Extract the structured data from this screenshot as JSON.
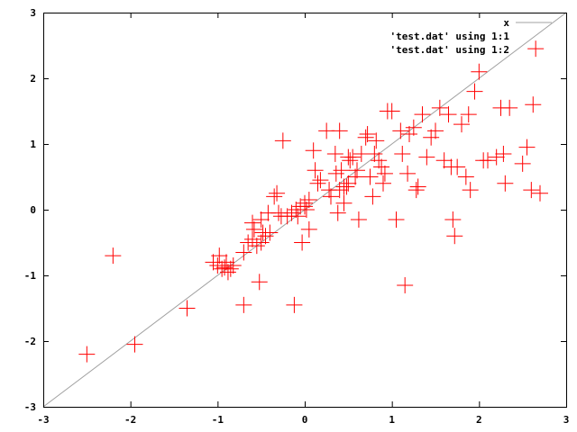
{
  "chart_data": {
    "type": "scatter",
    "xlim": [
      -3,
      3
    ],
    "ylim": [
      -3,
      3
    ],
    "x_ticks": [
      "-3",
      "-2",
      "-1",
      "0",
      "1",
      "2",
      "3"
    ],
    "y_ticks": [
      "-3",
      "-2",
      "-1",
      "0",
      "1",
      "2",
      "3"
    ],
    "grid": false,
    "legend_position": "top-right",
    "series": [
      {
        "name": "x",
        "type": "line",
        "color": "#a0a0a0",
        "function": "y = x"
      },
      {
        "name": "'test.dat' using 1:1",
        "type": "line",
        "color": "#a0a0a0",
        "marker": "none"
      },
      {
        "name": "'test.dat' using 1:2",
        "type": "scatter",
        "color": "#ff0000",
        "marker": "plus",
        "x": [
          -2.5,
          -2.2,
          -1.95,
          -1.35,
          -1.05,
          -1.0,
          -0.98,
          -0.95,
          -0.92,
          -0.9,
          -0.88,
          -0.85,
          -0.82,
          -0.7,
          -0.7,
          -0.65,
          -0.6,
          -0.6,
          -0.58,
          -0.55,
          -0.52,
          -0.5,
          -0.5,
          -0.48,
          -0.45,
          -0.42,
          -0.4,
          -0.35,
          -0.32,
          -0.3,
          -0.27,
          -0.25,
          -0.2,
          -0.15,
          -0.12,
          -0.1,
          -0.08,
          -0.05,
          -0.03,
          0.0,
          0.0,
          0.02,
          0.05,
          0.05,
          0.1,
          0.12,
          0.15,
          0.18,
          0.25,
          0.28,
          0.3,
          0.35,
          0.36,
          0.38,
          0.4,
          0.4,
          0.42,
          0.45,
          0.45,
          0.48,
          0.5,
          0.5,
          0.52,
          0.55,
          0.58,
          0.6,
          0.62,
          0.65,
          0.7,
          0.72,
          0.75,
          0.78,
          0.8,
          0.82,
          0.85,
          0.88,
          0.9,
          0.92,
          0.95,
          1.0,
          1.05,
          1.1,
          1.12,
          1.15,
          1.18,
          1.2,
          1.25,
          1.28,
          1.3,
          1.35,
          1.4,
          1.45,
          1.5,
          1.55,
          1.6,
          1.65,
          1.68,
          1.7,
          1.72,
          1.75,
          1.8,
          1.85,
          1.88,
          1.9,
          1.95,
          2.0,
          2.05,
          2.1,
          2.2,
          2.25,
          2.28,
          2.3,
          2.35,
          2.5,
          2.55,
          2.6,
          2.62,
          2.65,
          2.7
        ],
        "y": [
          -2.2,
          -0.7,
          -2.05,
          -1.5,
          -0.8,
          -0.85,
          -0.7,
          -0.9,
          -0.88,
          -0.8,
          -0.95,
          -0.9,
          -0.85,
          -1.45,
          -0.65,
          -0.5,
          -0.2,
          -0.45,
          -0.3,
          -0.55,
          -1.1,
          -0.15,
          -0.5,
          -0.35,
          -0.4,
          -0.05,
          -0.35,
          0.2,
          0.25,
          -0.05,
          -0.1,
          1.05,
          -0.1,
          -0.05,
          -1.45,
          0.0,
          -0.1,
          0.05,
          -0.5,
          0.05,
          0.1,
          0.0,
          0.15,
          -0.3,
          0.9,
          0.6,
          0.4,
          0.45,
          1.2,
          0.3,
          0.2,
          0.85,
          0.55,
          -0.05,
          0.3,
          1.2,
          0.6,
          0.1,
          0.35,
          0.35,
          0.4,
          0.8,
          0.75,
          0.8,
          0.5,
          0.6,
          -0.15,
          0.85,
          1.1,
          1.15,
          0.5,
          0.2,
          0.85,
          1.05,
          0.75,
          0.65,
          0.4,
          0.55,
          1.5,
          1.5,
          -0.15,
          1.2,
          0.85,
          -1.15,
          0.55,
          1.15,
          1.25,
          0.3,
          0.35,
          1.45,
          0.8,
          1.1,
          1.2,
          1.55,
          0.75,
          1.45,
          0.65,
          -0.15,
          -0.4,
          0.65,
          1.3,
          0.5,
          1.45,
          0.3,
          1.8,
          2.1,
          0.75,
          0.75,
          0.8,
          1.55,
          0.85,
          0.4,
          1.55,
          0.7,
          0.95,
          0.3,
          1.6,
          2.45,
          0.25
        ]
      }
    ]
  }
}
